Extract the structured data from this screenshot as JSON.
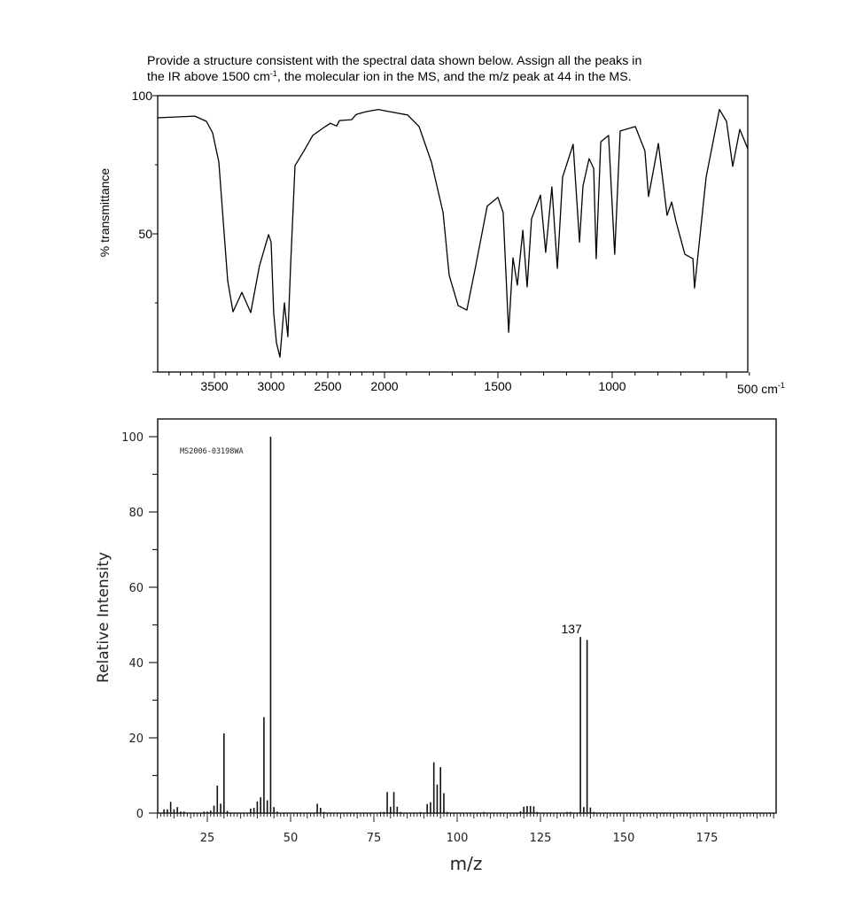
{
  "question": {
    "line1": "Provide a structure consistent with the spectral data shown below.  Assign all the peaks in",
    "line2_a": "the IR above 1500 cm",
    "line2_sup": "-1",
    "line2_b": ", the molecular ion in the MS, and the m/z peak at 44 in the MS."
  },
  "chart_data": [
    {
      "type": "line",
      "title": "",
      "ylabel": "% transmittance",
      "xlabel_unit": "cm",
      "xlabel_unit_sup": "-1",
      "xlim": [
        4000,
        400
      ],
      "ylim": [
        0,
        100
      ],
      "x_scale": "piecewise: 4000-2000 compressed, 2000-400 expanded",
      "y_tick_labels": [
        "100",
        "50"
      ],
      "x_tick_labels": [
        "3500",
        "3000",
        "2500",
        "2000",
        "1500",
        "1000",
        "500"
      ],
      "grid": false,
      "line_color": "#000000",
      "points": [
        [
          4000,
          92
        ],
        [
          3828,
          92.3
        ],
        [
          3672,
          92.6
        ],
        [
          3570,
          90.7
        ],
        [
          3516,
          86.5
        ],
        [
          3461,
          76
        ],
        [
          3422,
          54.5
        ],
        [
          3383,
          33
        ],
        [
          3336,
          21.8
        ],
        [
          3258,
          28.8
        ],
        [
          3180,
          21.5
        ],
        [
          3102,
          38.5
        ],
        [
          3023,
          49.7
        ],
        [
          3000,
          47
        ],
        [
          2977,
          21.5
        ],
        [
          2953,
          10.6
        ],
        [
          2922,
          5.4
        ],
        [
          2883,
          25
        ],
        [
          2852,
          12.8
        ],
        [
          2828,
          38.5
        ],
        [
          2789,
          74.7
        ],
        [
          2711,
          80
        ],
        [
          2633,
          85.6
        ],
        [
          2523,
          88.8
        ],
        [
          2477,
          90
        ],
        [
          2422,
          89
        ],
        [
          2398,
          91
        ],
        [
          2289,
          91.3
        ],
        [
          2250,
          93.2
        ],
        [
          2164,
          94.2
        ],
        [
          2055,
          95
        ],
        [
          1973,
          94.2
        ],
        [
          1895,
          93
        ],
        [
          1845,
          88.8
        ],
        [
          1791,
          76
        ],
        [
          1740,
          57.7
        ],
        [
          1713,
          35
        ],
        [
          1674,
          24
        ],
        [
          1636,
          22.4
        ],
        [
          1597,
          38.5
        ],
        [
          1547,
          60
        ],
        [
          1500,
          63.2
        ],
        [
          1477,
          57.7
        ],
        [
          1453,
          14.4
        ],
        [
          1434,
          41.3
        ],
        [
          1415,
          31.4
        ],
        [
          1391,
          51.3
        ],
        [
          1372,
          30.8
        ],
        [
          1353,
          55.4
        ],
        [
          1314,
          64
        ],
        [
          1291,
          43.3
        ],
        [
          1264,
          67
        ],
        [
          1240,
          37.5
        ],
        [
          1217,
          70.5
        ],
        [
          1171,
          82.4
        ],
        [
          1143,
          47
        ],
        [
          1128,
          67.3
        ],
        [
          1101,
          77.2
        ],
        [
          1081,
          73.7
        ],
        [
          1070,
          41
        ],
        [
          1050,
          83.3
        ],
        [
          1016,
          85.6
        ],
        [
          989,
          42.6
        ],
        [
          965,
          87.2
        ],
        [
          899,
          88.8
        ],
        [
          857,
          80
        ],
        [
          841,
          63.5
        ],
        [
          798,
          82.7
        ],
        [
          760,
          56.7
        ],
        [
          740,
          61.5
        ],
        [
          721,
          54.5
        ],
        [
          682,
          42.6
        ],
        [
          647,
          41
        ],
        [
          640,
          30.4
        ],
        [
          589,
          70.5
        ],
        [
          531,
          95
        ],
        [
          500,
          90.7
        ],
        [
          473,
          74.4
        ],
        [
          442,
          87.8
        ],
        [
          407,
          80.8
        ]
      ]
    },
    {
      "type": "bar",
      "title": "",
      "ylabel": "Relative Intensity",
      "xlabel": "m/z",
      "xlim": [
        10,
        195
      ],
      "ylim": [
        0,
        100
      ],
      "y_tick_labels": [
        "0",
        "20",
        "40",
        "60",
        "80",
        "100"
      ],
      "x_tick_labels": [
        "25",
        "50",
        "75",
        "100",
        "125",
        "150",
        "175"
      ],
      "grid": false,
      "watermark": "MS2006-03198WA",
      "annotations": [
        {
          "x": 137,
          "text": "137"
        }
      ],
      "peaks": [
        [
          12,
          1
        ],
        [
          13,
          1
        ],
        [
          14,
          3
        ],
        [
          15,
          1
        ],
        [
          16,
          1.6
        ],
        [
          17,
          0.4
        ],
        [
          18,
          0.4
        ],
        [
          24,
          0.4
        ],
        [
          25,
          0.4
        ],
        [
          26,
          0.7
        ],
        [
          27,
          2
        ],
        [
          28,
          7.3
        ],
        [
          29,
          2.5
        ],
        [
          30,
          21.2
        ],
        [
          31,
          0.6
        ],
        [
          38,
          1.2
        ],
        [
          39,
          1.4
        ],
        [
          40,
          3.1
        ],
        [
          41,
          4.2
        ],
        [
          42,
          25.5
        ],
        [
          43,
          3.4
        ],
        [
          44,
          100
        ],
        [
          45,
          1.6
        ],
        [
          46,
          0.4
        ],
        [
          58,
          2.5
        ],
        [
          59,
          1.4
        ],
        [
          60,
          0.3
        ],
        [
          77,
          0.3
        ],
        [
          78,
          0.3
        ],
        [
          79,
          5.6
        ],
        [
          80,
          1.7
        ],
        [
          81,
          5.6
        ],
        [
          82,
          1.7
        ],
        [
          83,
          0.3
        ],
        [
          89,
          0.3
        ],
        [
          91,
          2.4
        ],
        [
          92,
          2.9
        ],
        [
          93,
          13.5
        ],
        [
          94,
          7.6
        ],
        [
          95,
          12.2
        ],
        [
          96,
          5.3
        ],
        [
          97,
          0.3
        ],
        [
          108,
          0.3
        ],
        [
          119,
          0.5
        ],
        [
          120,
          1.7
        ],
        [
          121,
          1.9
        ],
        [
          122,
          1.9
        ],
        [
          123,
          1.8
        ],
        [
          124,
          0.3
        ],
        [
          133,
          0.3
        ],
        [
          134,
          0.3
        ],
        [
          137,
          46.8
        ],
        [
          138,
          1.6
        ],
        [
          139,
          46
        ],
        [
          140,
          1.5
        ],
        [
          141,
          0.3
        ]
      ]
    }
  ]
}
